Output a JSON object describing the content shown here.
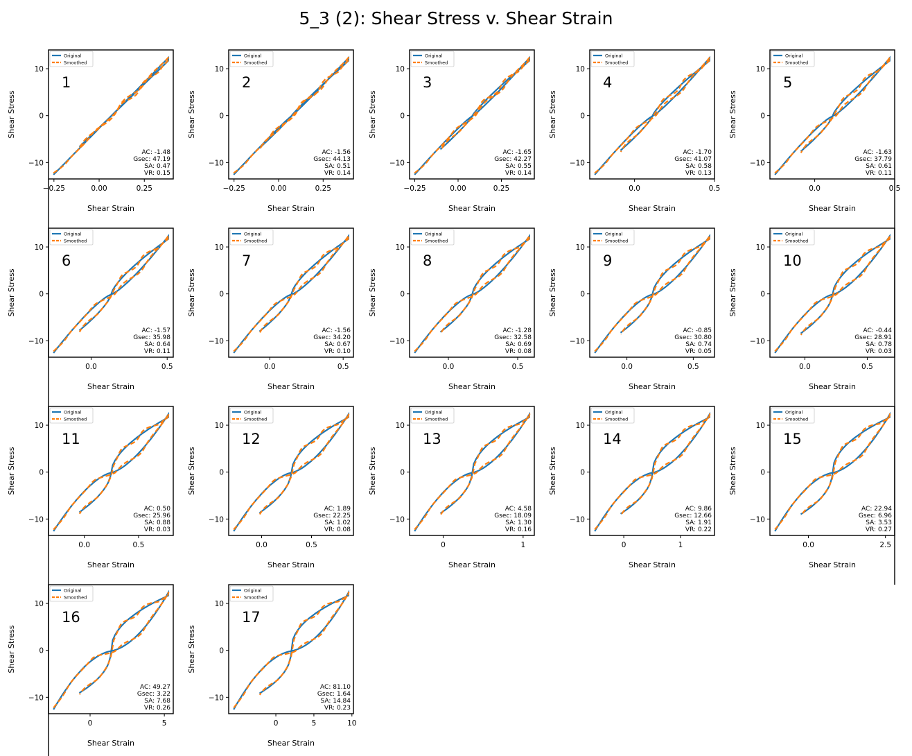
{
  "title": "5_3 (2): Shear Stress v. Shear Strain",
  "colors": {
    "original": "#1f77b4",
    "smoothed": "#ff7f0e"
  },
  "chart_data": {
    "type": "line",
    "grid": false,
    "xlabel": "Shear Strain",
    "ylabel": "Shear Stress",
    "legend": {
      "placement": "top-left",
      "entries": [
        "Original",
        "Smoothed"
      ]
    },
    "panels": [
      {
        "label": "1",
        "xlim": [
          -0.28,
          0.41
        ],
        "ylim": [
          -13.5,
          14
        ],
        "xticks": [
          -0.25,
          0.0,
          0.25
        ],
        "xtick_labels": [
          "-0.25",
          "0.00",
          "0.25"
        ],
        "stats": {
          "AC": "-1.48",
          "Gsec": "47.19",
          "SA": "0.47",
          "VR": "0.15"
        }
      },
      {
        "label": "2",
        "xlim": [
          -0.28,
          0.42
        ],
        "ylim": [
          -13.5,
          14
        ],
        "xticks": [
          -0.25,
          0.0,
          0.25
        ],
        "xtick_labels": [
          "-0.25",
          "0.00",
          "0.25"
        ],
        "stats": {
          "AC": "-1.56",
          "Gsec": "44.13",
          "SA": "0.51",
          "VR": "0.14"
        }
      },
      {
        "label": "3",
        "xlim": [
          -0.28,
          0.44
        ],
        "ylim": [
          -13.5,
          14
        ],
        "xticks": [
          -0.25,
          0.0,
          0.25
        ],
        "xtick_labels": [
          "-0.25",
          "0.00",
          "0.25"
        ],
        "stats": {
          "AC": "-1.65",
          "Gsec": "42.27",
          "SA": "0.55",
          "VR": "0.14"
        }
      },
      {
        "label": "4",
        "xlim": [
          -0.28,
          0.5
        ],
        "ylim": [
          -13.5,
          14
        ],
        "xticks": [
          0.0,
          0.5
        ],
        "xtick_labels": [
          "0.0",
          "0.5"
        ],
        "stats": {
          "AC": "-1.70",
          "Gsec": "41.07",
          "SA": "0.58",
          "VR": "0.13"
        }
      },
      {
        "label": "5",
        "xlim": [
          -0.28,
          0.5
        ],
        "ylim": [
          -13.5,
          14
        ],
        "xticks": [
          0.0,
          0.5
        ],
        "xtick_labels": [
          "0.0",
          "0.5"
        ],
        "stats": {
          "AC": "-1.63",
          "Gsec": "37.79",
          "SA": "0.61",
          "VR": "0.11"
        }
      },
      {
        "label": "6",
        "xlim": [
          -0.28,
          0.54
        ],
        "ylim": [
          -13.5,
          14
        ],
        "xticks": [
          0.0,
          0.5
        ],
        "xtick_labels": [
          "0.0",
          "0.5"
        ],
        "stats": {
          "AC": "-1.57",
          "Gsec": "35.98",
          "SA": "0.64",
          "VR": "0.11"
        }
      },
      {
        "label": "7",
        "xlim": [
          -0.28,
          0.57
        ],
        "ylim": [
          -13.5,
          14
        ],
        "xticks": [
          0.0,
          0.5
        ],
        "xtick_labels": [
          "0.0",
          "0.5"
        ],
        "stats": {
          "AC": "-1.56",
          "Gsec": "34.20",
          "SA": "0.67",
          "VR": "0.10"
        }
      },
      {
        "label": "8",
        "xlim": [
          -0.28,
          0.62
        ],
        "ylim": [
          -13.5,
          14
        ],
        "xticks": [
          0.0,
          0.5
        ],
        "xtick_labels": [
          "0.0",
          "0.5"
        ],
        "stats": {
          "AC": "-1.28",
          "Gsec": "32.58",
          "SA": "0.69",
          "VR": "0.08"
        }
      },
      {
        "label": "9",
        "xlim": [
          -0.28,
          0.66
        ],
        "ylim": [
          -13.5,
          14
        ],
        "xticks": [
          0.0,
          0.5
        ],
        "xtick_labels": [
          "0.0",
          "0.5"
        ],
        "stats": {
          "AC": "-0.85",
          "Gsec": "30.80",
          "SA": "0.74",
          "VR": "0.05"
        }
      },
      {
        "label": "10",
        "xlim": [
          -0.28,
          0.72
        ],
        "ylim": [
          -13.5,
          14
        ],
        "xticks": [
          0.0,
          0.5
        ],
        "xtick_labels": [
          "0.0",
          "0.5"
        ],
        "stats": {
          "AC": "-0.44",
          "Gsec": "28.91",
          "SA": "0.78",
          "VR": "0.03"
        }
      },
      {
        "label": "11",
        "xlim": [
          -0.33,
          0.82
        ],
        "ylim": [
          -13.5,
          14
        ],
        "xticks": [
          0.0,
          0.5
        ],
        "xtick_labels": [
          "0.0",
          "0.5"
        ],
        "stats": {
          "AC": "0.50",
          "Gsec": "25.96",
          "SA": "0.88",
          "VR": "0.03"
        }
      },
      {
        "label": "12",
        "xlim": [
          -0.33,
          0.92
        ],
        "ylim": [
          -13.5,
          14
        ],
        "xticks": [
          0.0,
          0.5
        ],
        "xtick_labels": [
          "0.0",
          "0.5"
        ],
        "stats": {
          "AC": "1.89",
          "Gsec": "22.25",
          "SA": "1.02",
          "VR": "0.08"
        }
      },
      {
        "label": "13",
        "xlim": [
          -0.42,
          1.14
        ],
        "ylim": [
          -13.5,
          14
        ],
        "xticks": [
          0,
          1
        ],
        "xtick_labels": [
          "0",
          "1"
        ],
        "stats": {
          "AC": "4.58",
          "Gsec": "18.09",
          "SA": "1.30",
          "VR": "0.16"
        }
      },
      {
        "label": "14",
        "xlim": [
          -0.6,
          1.6
        ],
        "ylim": [
          -13.5,
          14
        ],
        "xticks": [
          0,
          1
        ],
        "xtick_labels": [
          "0",
          "1"
        ],
        "stats": {
          "AC": "9.86",
          "Gsec": "12.66",
          "SA": "1.91",
          "VR": "0.22"
        }
      },
      {
        "label": "15",
        "xlim": [
          -1.25,
          2.8
        ],
        "ylim": [
          -13.5,
          14
        ],
        "xticks": [
          0.0,
          2.5
        ],
        "xtick_labels": [
          "0.0",
          "2.5"
        ],
        "stats": {
          "AC": "22.94",
          "Gsec": "6.96",
          "SA": "3.53",
          "VR": "0.27"
        }
      },
      {
        "label": "16",
        "xlim": [
          -2.8,
          5.6
        ],
        "ylim": [
          -13.5,
          14
        ],
        "xticks": [
          0,
          5
        ],
        "xtick_labels": [
          "0",
          "5"
        ],
        "stats": {
          "AC": "49.27",
          "Gsec": "3.22",
          "SA": "7.68",
          "VR": "0.26"
        }
      },
      {
        "label": "17",
        "xlim": [
          -6.2,
          10.2
        ],
        "ylim": [
          -13.5,
          14
        ],
        "xticks": [
          0,
          5,
          10
        ],
        "xtick_labels": [
          "0",
          "5",
          "10"
        ],
        "stats": {
          "AC": "81.10",
          "Gsec": "1.64",
          "SA": "14.84",
          "VR": "0.23"
        }
      }
    ]
  }
}
